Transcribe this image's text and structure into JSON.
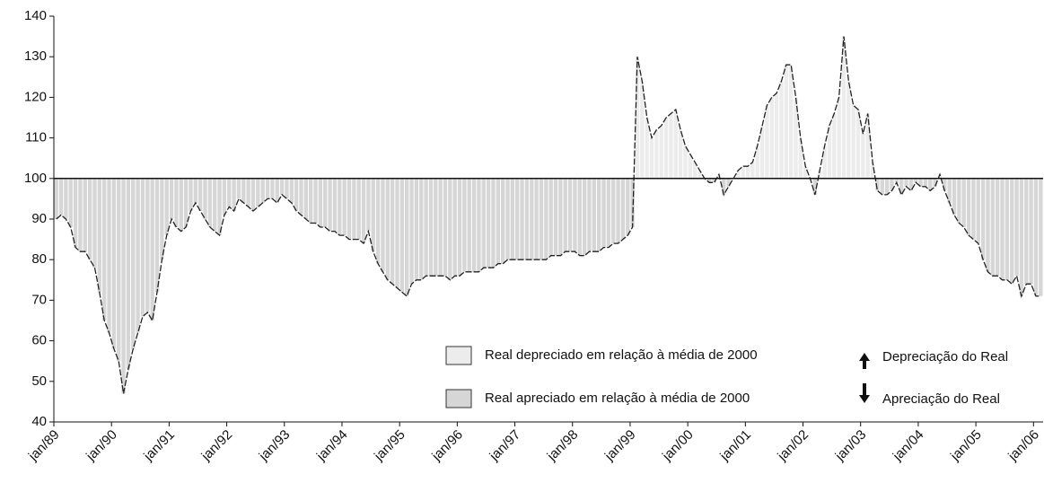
{
  "chart_data": {
    "type": "bar",
    "categories": [
      "jan/89",
      null,
      null,
      null,
      null,
      null,
      null,
      null,
      null,
      null,
      null,
      null,
      "jan/90",
      null,
      null,
      null,
      null,
      null,
      null,
      null,
      null,
      null,
      null,
      null,
      "jan/91",
      null,
      null,
      null,
      null,
      null,
      null,
      null,
      null,
      null,
      null,
      null,
      "jan/92",
      null,
      null,
      null,
      null,
      null,
      null,
      null,
      null,
      null,
      null,
      null,
      "jan/93",
      null,
      null,
      null,
      null,
      null,
      null,
      null,
      null,
      null,
      null,
      null,
      "jan/94",
      null,
      null,
      null,
      null,
      null,
      null,
      null,
      null,
      null,
      null,
      null,
      "jan/95",
      null,
      null,
      null,
      null,
      null,
      null,
      null,
      null,
      null,
      null,
      null,
      "jan/96",
      null,
      null,
      null,
      null,
      null,
      null,
      null,
      null,
      null,
      null,
      null,
      "jan/97",
      null,
      null,
      null,
      null,
      null,
      null,
      null,
      null,
      null,
      null,
      null,
      "jan/98",
      null,
      null,
      null,
      null,
      null,
      null,
      null,
      null,
      null,
      null,
      null,
      "jan/99",
      null,
      null,
      null,
      null,
      null,
      null,
      null,
      null,
      null,
      null,
      null,
      "jan/00",
      null,
      null,
      null,
      null,
      null,
      null,
      null,
      null,
      null,
      null,
      null,
      "jan/01",
      null,
      null,
      null,
      null,
      null,
      null,
      null,
      null,
      null,
      null,
      null,
      "jan/02",
      null,
      null,
      null,
      null,
      null,
      null,
      null,
      null,
      null,
      null,
      null,
      "jan/03",
      null,
      null,
      null,
      null,
      null,
      null,
      null,
      null,
      null,
      null,
      null,
      "jan/04",
      null,
      null,
      null,
      null,
      null,
      null,
      null,
      null,
      null,
      null,
      null,
      "jan/05",
      null,
      null,
      null,
      null,
      null,
      null,
      null,
      null,
      null,
      null,
      null,
      "jan/06",
      null
    ],
    "values": [
      90,
      91,
      90,
      88,
      83,
      82,
      82,
      80,
      78,
      72,
      65,
      62,
      58,
      55,
      47,
      53,
      58,
      62,
      66,
      67,
      65,
      72,
      80,
      86,
      90,
      88,
      87,
      88,
      92,
      94,
      92,
      90,
      88,
      87,
      86,
      91,
      93,
      92,
      95,
      94,
      93,
      92,
      93,
      94,
      95,
      95,
      94,
      96,
      95,
      94,
      92,
      91,
      90,
      89,
      89,
      88,
      88,
      87,
      87,
      86,
      86,
      85,
      85,
      85,
      84,
      87,
      82,
      79,
      77,
      75,
      74,
      73,
      72,
      71,
      74,
      75,
      75,
      76,
      76,
      76,
      76,
      76,
      75,
      76,
      76,
      77,
      77,
      77,
      77,
      78,
      78,
      78,
      79,
      79,
      80,
      80,
      80,
      80,
      80,
      80,
      80,
      80,
      80,
      81,
      81,
      81,
      82,
      82,
      82,
      81,
      81,
      82,
      82,
      82,
      83,
      83,
      84,
      84,
      85,
      86,
      88,
      130,
      124,
      115,
      110,
      112,
      113,
      115,
      116,
      117,
      112,
      108,
      106,
      104,
      102,
      100,
      99,
      99,
      101,
      96,
      98,
      100,
      102,
      103,
      103,
      104,
      108,
      113,
      118,
      120,
      121,
      124,
      128,
      128,
      120,
      110,
      103,
      100,
      96,
      102,
      108,
      113,
      116,
      120,
      135,
      124,
      118,
      117,
      111,
      116,
      104,
      97,
      96,
      96,
      97,
      99,
      96,
      98,
      97,
      99,
      98,
      98,
      97,
      98,
      101,
      97,
      94,
      91,
      89,
      88,
      86,
      85,
      84,
      80,
      77,
      76,
      76,
      75,
      75,
      74,
      76,
      71,
      74,
      74,
      71,
      71
    ],
    "baseline": 100,
    "above_color": "#ececec",
    "below_color": "#d6d6d6",
    "line_color": "#222222",
    "ylim": [
      40,
      140
    ],
    "yticks": [
      40,
      50,
      60,
      70,
      80,
      90,
      100,
      110,
      120,
      130,
      140
    ],
    "legend": [
      {
        "label": "Real depreciado em relação à média de 2000",
        "color": "#ececec"
      },
      {
        "label": "Real apreciado em relação à média de 2000",
        "color": "#d6d6d6"
      }
    ],
    "annotations": [
      "Depreciação do Real",
      "Apreciação do Real"
    ]
  }
}
